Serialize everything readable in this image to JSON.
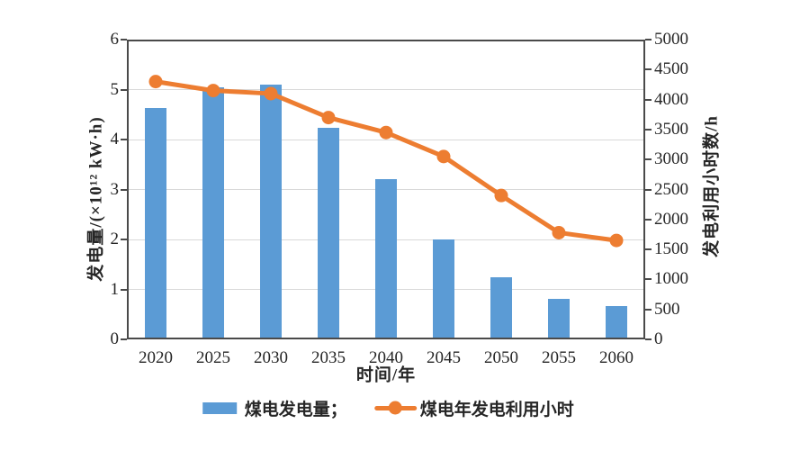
{
  "chart_data": {
    "type": "bar+line combo",
    "categories": [
      "2020",
      "2025",
      "2030",
      "2035",
      "2040",
      "2045",
      "2050",
      "2055",
      "2060"
    ],
    "series": [
      {
        "name": "煤电发电量",
        "type": "bar",
        "axis": "left",
        "color": "#5b9bd5",
        "values": [
          4.63,
          5.05,
          5.1,
          4.23,
          3.2,
          2.0,
          1.25,
          0.82,
          0.67
        ]
      },
      {
        "name": "煤电年发电利用小时",
        "type": "line",
        "axis": "right",
        "color": "#ed7d31",
        "values": [
          4300,
          4150,
          4100,
          3700,
          3450,
          3050,
          2400,
          1780,
          1650
        ]
      }
    ],
    "title": "",
    "xlabel": "时间/年",
    "left_axis": {
      "label": "发电量/(×10¹² kW·h)",
      "min": 0,
      "max": 6,
      "step": 1
    },
    "right_axis": {
      "label": "发电利用小时数/h",
      "min": 0,
      "max": 5000,
      "step": 500
    },
    "grid": "horizontal gridlines at left-axis integers 1-5",
    "legend_position": "bottom"
  },
  "legend": {
    "bar_label": "煤电发电量；",
    "line_label": "煤电年发电利用小时"
  },
  "colors": {
    "bar": "#5b9bd5",
    "line": "#ed7d31",
    "axis_frame": "#4a4a4a",
    "gridline": "#d9d9d9",
    "text": "#262626",
    "background": "#ffffff"
  }
}
